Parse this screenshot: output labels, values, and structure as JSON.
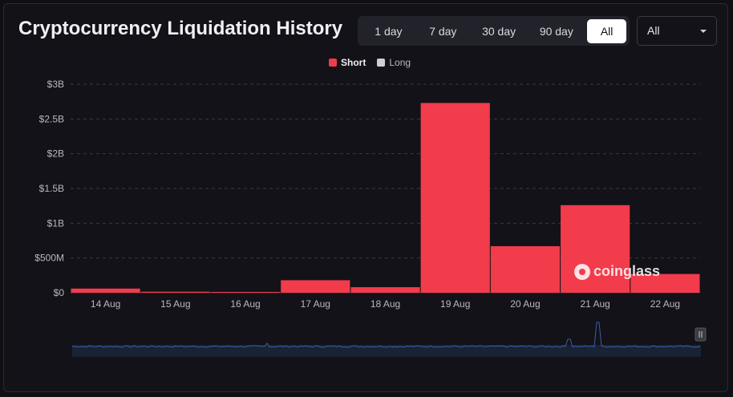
{
  "header": {
    "title": "Cryptocurrency Liquidation History"
  },
  "range_tabs": [
    {
      "label": "1 day",
      "active": false
    },
    {
      "label": "7 day",
      "active": false
    },
    {
      "label": "30 day",
      "active": false
    },
    {
      "label": "90 day",
      "active": false
    },
    {
      "label": "All",
      "active": true
    }
  ],
  "coin_select": {
    "value": "All",
    "icon": "chevron-down-icon"
  },
  "legend": [
    {
      "name": "Short",
      "color": "#f23b4b"
    },
    {
      "name": "Long",
      "color": "#d0d0d4"
    }
  ],
  "watermark": {
    "text": "coinglass",
    "icon": "coinglass-logo-icon"
  },
  "colors": {
    "short": "#f23b4b",
    "long": "#d0d0d4",
    "grid": "#3a3a44",
    "scroller_line": "#3b5fa8",
    "scroller_bg": "#1a2333"
  },
  "chart_data": {
    "type": "bar",
    "categories": [
      "14 Aug",
      "15 Aug",
      "16 Aug",
      "17 Aug",
      "18 Aug",
      "19 Aug",
      "20 Aug",
      "21 Aug",
      "22 Aug"
    ],
    "series": [
      {
        "name": "Short",
        "values": [
          60000000,
          15000000,
          12000000,
          180000000,
          80000000,
          2730000000,
          670000000,
          1260000000,
          270000000
        ]
      },
      {
        "name": "Long",
        "values": [
          0,
          0,
          0,
          0,
          0,
          0,
          0,
          0,
          0
        ]
      }
    ],
    "ylim": [
      0,
      3000000000
    ],
    "yticks": [
      {
        "value": 0,
        "label": "$0"
      },
      {
        "value": 500000000,
        "label": "$500M"
      },
      {
        "value": 1000000000,
        "label": "$1B"
      },
      {
        "value": 1500000000,
        "label": "$1.5B"
      },
      {
        "value": 2000000000,
        "label": "$2B"
      },
      {
        "value": 2500000000,
        "label": "$2.5B"
      },
      {
        "value": 3000000000,
        "label": "$3B"
      }
    ],
    "grid": true,
    "legend_position": "top-center"
  }
}
